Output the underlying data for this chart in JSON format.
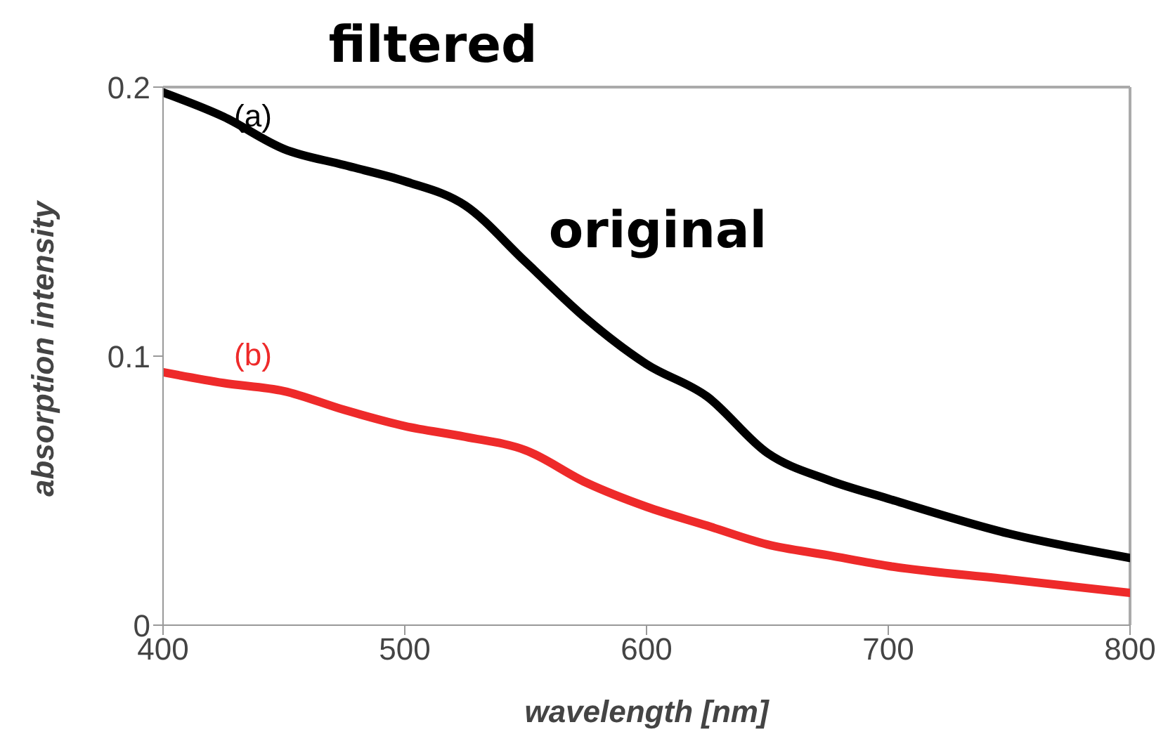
{
  "chart_data": {
    "type": "line",
    "xlabel": "wavelength [nm]",
    "ylabel": "absorption intensity",
    "x": [
      400,
      425,
      450,
      475,
      500,
      525,
      550,
      575,
      600,
      625,
      650,
      675,
      700,
      750,
      800
    ],
    "series": [
      {
        "color": "#000000",
        "values": [
          0.198,
          0.189,
          0.177,
          0.171,
          0.165,
          0.156,
          0.135,
          0.114,
          0.097,
          0.085,
          0.064,
          0.054,
          0.047,
          0.034,
          0.025
        ]
      },
      {
        "color": "#ee2a2a",
        "values": [
          0.094,
          0.09,
          0.087,
          0.08,
          0.074,
          0.07,
          0.065,
          0.053,
          0.044,
          0.037,
          0.03,
          0.026,
          0.022,
          0.017,
          0.012
        ]
      }
    ],
    "xlim": [
      400,
      800
    ],
    "xticks": [
      400,
      500,
      600,
      700,
      800
    ],
    "ylim": [
      0,
      0.2
    ],
    "yticks": [
      0,
      0.1,
      0.2
    ],
    "annotations": [
      "(a)",
      "(b)",
      "filtered",
      "original"
    ],
    "marker": "none",
    "line_style": "solid",
    "grid": false
  }
}
